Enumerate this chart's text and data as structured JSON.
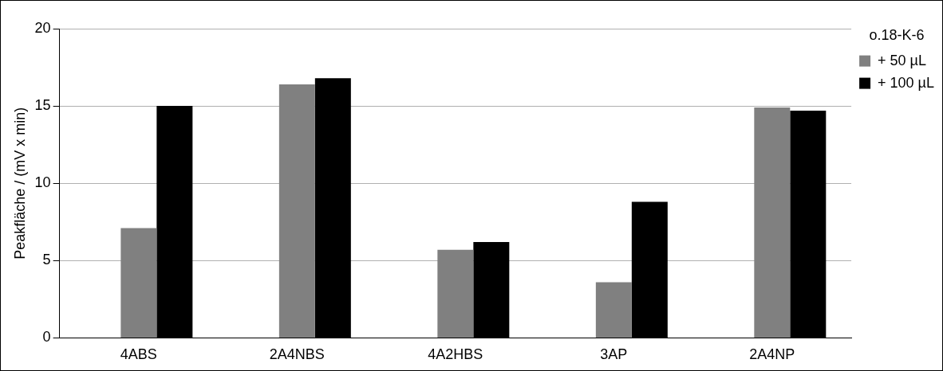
{
  "chart_data": {
    "type": "bar",
    "ylabel": "Peakfläche / (mV x min)",
    "legend_title": "o.18-K-6",
    "categories": [
      "4ABS",
      "2A4NBS",
      "4A2HBS",
      "3AP",
      "2A4NP"
    ],
    "series": [
      {
        "color": "#ffffff",
        "values": [
          null,
          null,
          null,
          null,
          null
        ]
      },
      {
        "name": "+ 50 µL",
        "color": "#808080",
        "values": [
          7.1,
          16.4,
          5.7,
          3.6,
          14.9
        ]
      },
      {
        "name": "+ 100 µL",
        "color": "#000000",
        "values": [
          15,
          16.8,
          6.2,
          8.8,
          14.7
        ]
      }
    ],
    "ylim": [
      0,
      20
    ],
    "yticks": [
      0,
      5,
      10,
      15,
      20
    ],
    "grid": "y",
    "legend": "top right"
  }
}
